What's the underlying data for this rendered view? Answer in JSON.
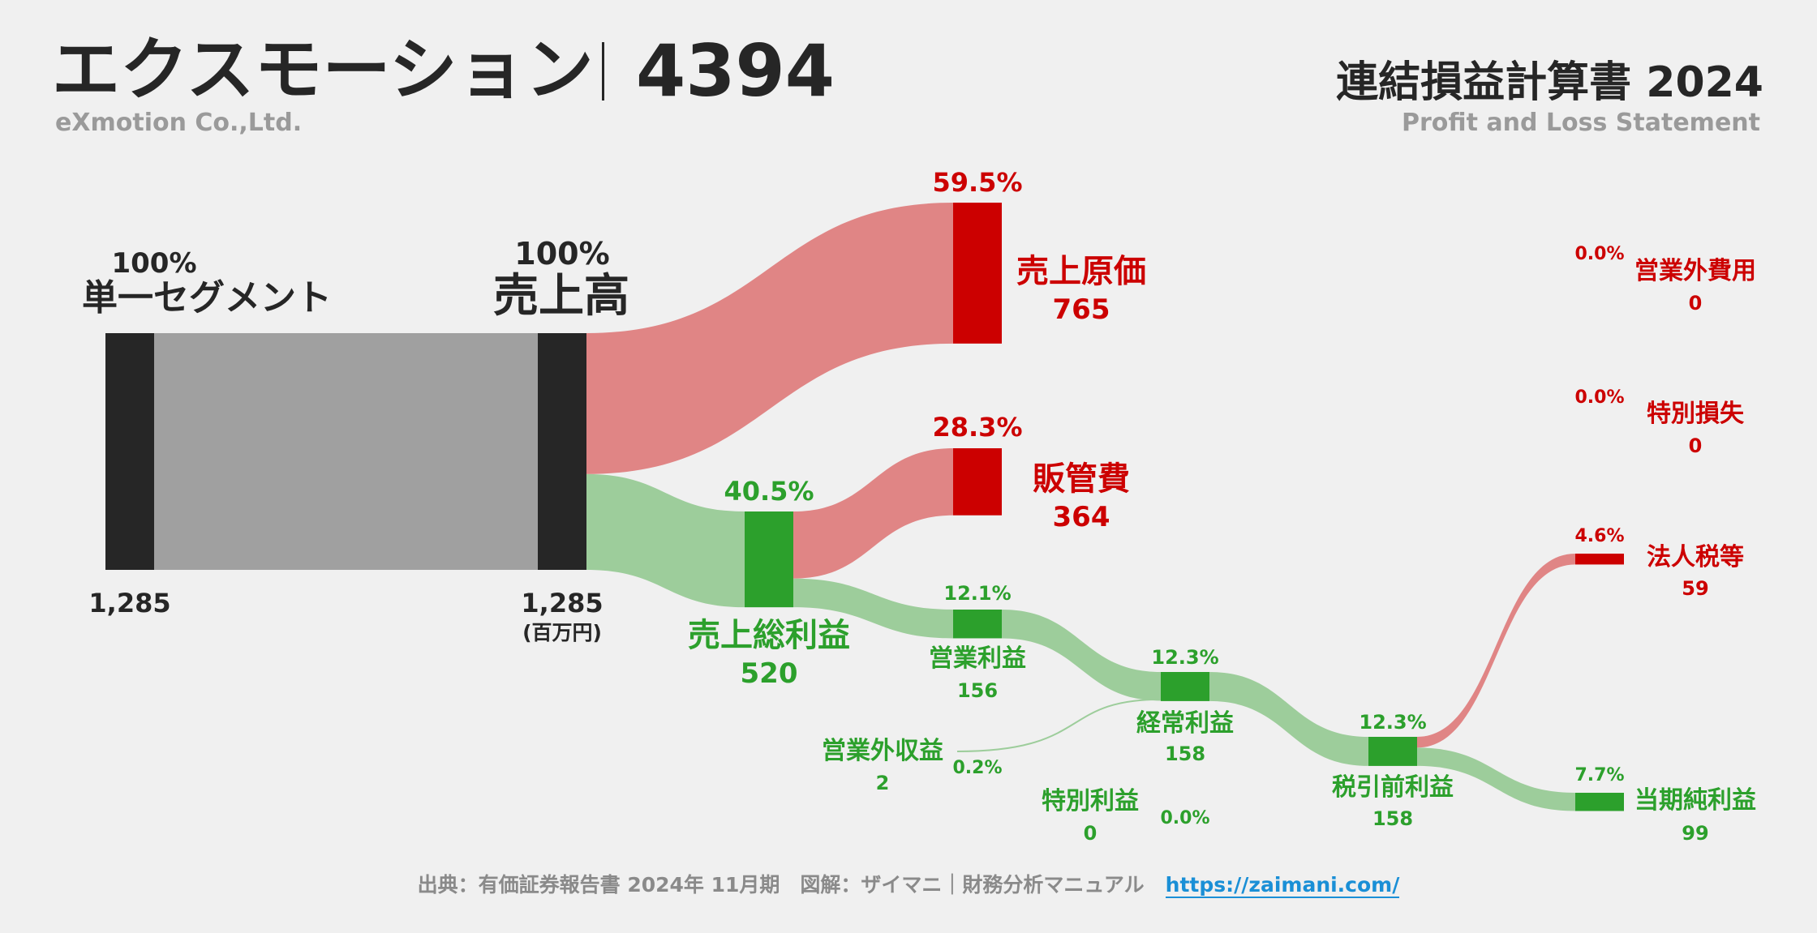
{
  "header": {
    "company": "エクスモーション",
    "ticker": "4394",
    "company_en": "eXmotion Co.,Ltd.",
    "title": "連結損益計算書 2024",
    "subtitle": "Profit and Loss Statement"
  },
  "footer": {
    "source": "出典：有価証券報告書 2024年 11月期　図解：ザイマニ｜財務分析マニュアル",
    "url": "https://zaimani.com/"
  },
  "chart_data": {
    "type": "sankey",
    "unit": "(百万円)",
    "colors": {
      "dark": "#262626",
      "red": "#cc0000",
      "green": "#2ca02c",
      "red_flow": "#e08585",
      "green_flow": "#9dcd9b",
      "gray_flow": "#a0a0a0"
    },
    "nodes": {
      "segment": {
        "label": "単一セグメント",
        "pct": "100%",
        "value": "1,285"
      },
      "revenue": {
        "label": "売上高",
        "pct": "100%",
        "value": "1,285"
      },
      "cogs": {
        "label": "売上原価",
        "pct": "59.5%",
        "value": "765"
      },
      "gross_profit": {
        "label": "売上総利益",
        "pct": "40.5%",
        "value": "520"
      },
      "sga": {
        "label": "販管費",
        "pct": "28.3%",
        "value": "364"
      },
      "operating": {
        "label": "営業利益",
        "pct": "12.1%",
        "value": "156"
      },
      "non_op_income": {
        "label": "営業外収益",
        "pct": "0.2%",
        "value": "2"
      },
      "non_op_expense": {
        "label": "営業外費用",
        "pct": "0.0%",
        "value": "0"
      },
      "ordinary": {
        "label": "経常利益",
        "pct": "12.3%",
        "value": "158"
      },
      "extra_income": {
        "label": "特別利益",
        "pct": "0.0%",
        "value": "0"
      },
      "extra_loss": {
        "label": "特別損失",
        "pct": "0.0%",
        "value": "0"
      },
      "pretax": {
        "label": "税引前利益",
        "pct": "12.3%",
        "value": "158"
      },
      "tax": {
        "label": "法人税等",
        "pct": "4.6%",
        "value": "59"
      },
      "net_income": {
        "label": "当期純利益",
        "pct": "7.7%",
        "value": "99"
      }
    },
    "flows": [
      {
        "from": "segment",
        "to": "revenue",
        "value": 1285
      },
      {
        "from": "revenue",
        "to": "cogs",
        "value": 765
      },
      {
        "from": "revenue",
        "to": "gross_profit",
        "value": 520
      },
      {
        "from": "gross_profit",
        "to": "sga",
        "value": 364
      },
      {
        "from": "gross_profit",
        "to": "operating",
        "value": 156
      },
      {
        "from": "operating",
        "to": "ordinary",
        "value": 156
      },
      {
        "from": "non_op_income",
        "to": "ordinary",
        "value": 2
      },
      {
        "from": "ordinary",
        "to": "pretax",
        "value": 158
      },
      {
        "from": "pretax",
        "to": "tax",
        "value": 59
      },
      {
        "from": "pretax",
        "to": "net_income",
        "value": 99
      }
    ]
  }
}
